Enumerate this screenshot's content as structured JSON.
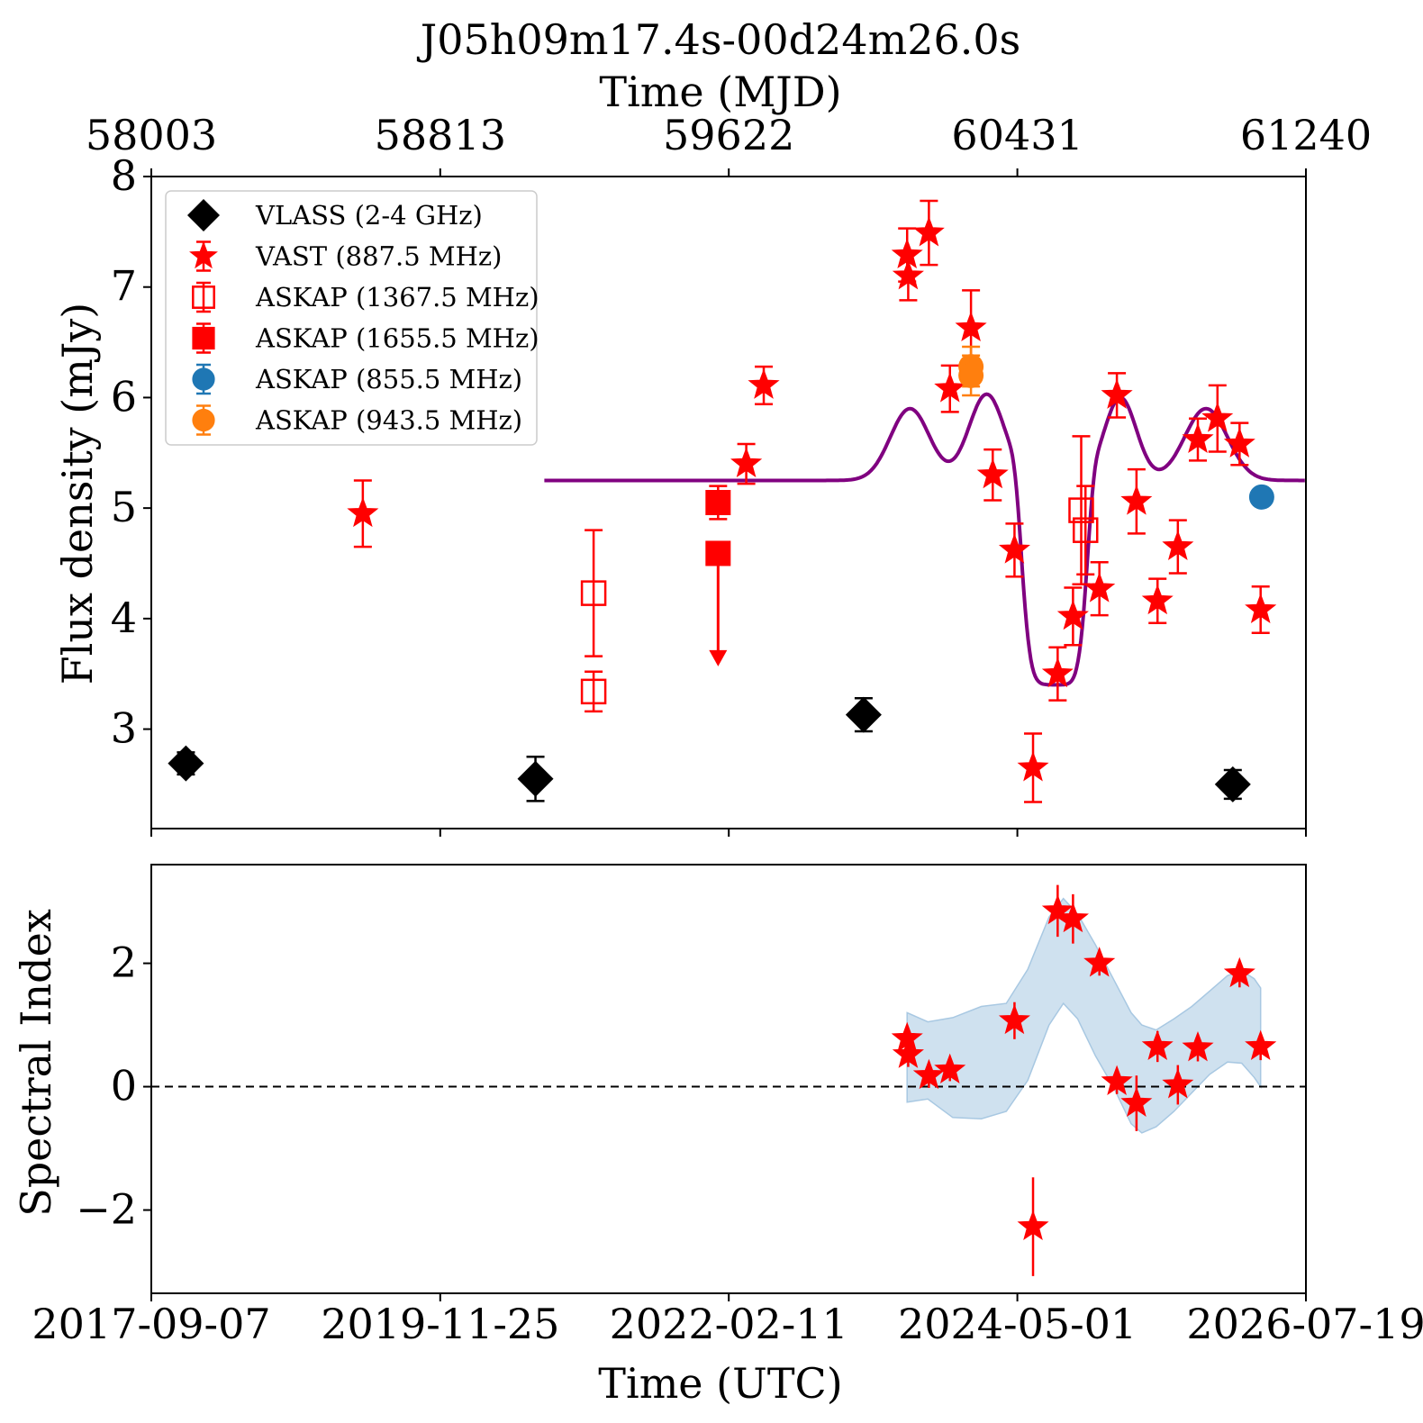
{
  "title": "J05h09m17.4s-00d24m26.0s",
  "top_axis": {
    "label": "Time (MJD)",
    "ticks": [
      {
        "value": 58003,
        "label": "58003"
      },
      {
        "value": 58813,
        "label": "58813"
      },
      {
        "value": 59622,
        "label": "59622"
      },
      {
        "value": 60431,
        "label": "60431"
      },
      {
        "value": 61240,
        "label": "61240"
      }
    ]
  },
  "bottom_axis": {
    "label": "Time (UTC)",
    "ticks": [
      {
        "value": 58003,
        "label": "2017-09-07"
      },
      {
        "value": 58813,
        "label": "2019-11-25"
      },
      {
        "value": 59622,
        "label": "2022-02-11"
      },
      {
        "value": 60431,
        "label": "2024-05-01"
      },
      {
        "value": 61240,
        "label": "2026-07-19"
      }
    ]
  },
  "colors": {
    "vlass": "#000000",
    "vast": "#ff0000",
    "askap": "#ff0000",
    "askap_855": "#1f77b4",
    "askap_943": "#ff7f0e",
    "model": "#800080",
    "band": "#a8c8e2"
  },
  "chart_data": [
    {
      "type": "scatter",
      "name": "flux-panel",
      "ylabel": "Flux density (mJy)",
      "xlim": [
        58003,
        61240
      ],
      "ylim": [
        2.1,
        8.0
      ],
      "yticks": [
        {
          "value": 3,
          "label": "3"
        },
        {
          "value": 4,
          "label": "4"
        },
        {
          "value": 5,
          "label": "5"
        },
        {
          "value": 6,
          "label": "6"
        },
        {
          "value": 7,
          "label": "7"
        },
        {
          "value": 8,
          "label": "8"
        }
      ],
      "legend_position": "top-left",
      "series": [
        {
          "name": "VLASS (2-4 GHz)",
          "marker": "diamond",
          "color": "#000000",
          "points": [
            {
              "x": 58100,
              "y": 2.69,
              "err": 0.1
            },
            {
              "x": 59080,
              "y": 2.55,
              "err": 0.2
            },
            {
              "x": 60000,
              "y": 3.13,
              "err": 0.15
            },
            {
              "x": 61035,
              "y": 2.5,
              "err": 0.13
            }
          ]
        },
        {
          "name": "VAST (887.5 MHz)",
          "marker": "star",
          "color": "#ff0000",
          "points": [
            {
              "x": 58596,
              "y": 4.95,
              "err": 0.3
            },
            {
              "x": 59671,
              "y": 5.4,
              "err": 0.18
            },
            {
              "x": 59720,
              "y": 6.11,
              "err": 0.17
            },
            {
              "x": 60122,
              "y": 7.29,
              "err": 0.24
            },
            {
              "x": 60125,
              "y": 7.1,
              "err": 0.22
            },
            {
              "x": 60183,
              "y": 7.49,
              "err": 0.29
            },
            {
              "x": 60242,
              "y": 6.08,
              "err": 0.21
            },
            {
              "x": 60301,
              "y": 6.63,
              "err": 0.34
            },
            {
              "x": 60362,
              "y": 5.3,
              "err": 0.23
            },
            {
              "x": 60423,
              "y": 4.62,
              "err": 0.24
            },
            {
              "x": 60475,
              "y": 2.65,
              "err": 0.31
            },
            {
              "x": 60544,
              "y": 3.5,
              "err": 0.24
            },
            {
              "x": 60587,
              "y": 4.02,
              "err": 0.26
            },
            {
              "x": 60661,
              "y": 4.27,
              "err": 0.24
            },
            {
              "x": 60710,
              "y": 6.02,
              "err": 0.2
            },
            {
              "x": 60765,
              "y": 5.06,
              "err": 0.29
            },
            {
              "x": 60824,
              "y": 4.16,
              "err": 0.2
            },
            {
              "x": 60881,
              "y": 4.65,
              "err": 0.24
            },
            {
              "x": 60937,
              "y": 5.62,
              "err": 0.19
            },
            {
              "x": 60992,
              "y": 5.81,
              "err": 0.3
            },
            {
              "x": 61054,
              "y": 5.58,
              "err": 0.19
            },
            {
              "x": 61113,
              "y": 4.08,
              "err": 0.21
            }
          ]
        },
        {
          "name": "ASKAP (1367.5 MHz)",
          "marker": "open-square",
          "color": "#ff0000",
          "points": [
            {
              "x": 59243,
              "y": 4.23,
              "err": 0.57
            },
            {
              "x": 59243,
              "y": 3.34,
              "err": 0.18
            },
            {
              "x": 60610,
              "y": 4.98,
              "err": 0.67
            },
            {
              "x": 60622,
              "y": 4.8,
              "err": 0.4
            }
          ]
        },
        {
          "name": "ASKAP (1655.5 MHz)",
          "marker": "square",
          "color": "#ff0000",
          "points": [
            {
              "x": 59592,
              "y": 5.05,
              "err": 0.15
            },
            {
              "x": 59592,
              "y": 4.59,
              "err": 0.0,
              "upper_limit_to": 3.6
            }
          ]
        },
        {
          "name": "ASKAP (855.5 MHz)",
          "marker": "circle",
          "color": "#1f77b4",
          "points": [
            {
              "x": 61116,
              "y": 5.1,
              "err": 0.0
            }
          ]
        },
        {
          "name": "ASKAP (943.5 MHz)",
          "marker": "circle",
          "color": "#ff7f0e",
          "points": [
            {
              "x": 60301,
              "y": 6.28,
              "err": 0.18
            },
            {
              "x": 60301,
              "y": 6.2,
              "err": 0.18
            }
          ]
        }
      ],
      "model_curve": {
        "baseline": 5.25,
        "x_start": 59105,
        "x_end": 61240,
        "bumps": [
          {
            "center": 60130,
            "amplitude": 0.65,
            "width": 55
          },
          {
            "center": 60345,
            "amplitude": 0.78,
            "width": 50
          },
          {
            "center": 60535,
            "amplitude": -1.85,
            "width": 85,
            "flat": 3
          },
          {
            "center": 60720,
            "amplitude": 0.75,
            "width": 45
          },
          {
            "center": 60960,
            "amplitude": 0.65,
            "width": 60
          }
        ]
      }
    },
    {
      "type": "scatter",
      "name": "spectral-index-panel",
      "ylabel": "Spectral Index",
      "xlim": [
        58003,
        61240
      ],
      "ylim": [
        -3.35,
        3.6
      ],
      "yticks": [
        {
          "value": -2,
          "label": "−2"
        },
        {
          "value": 0,
          "label": "0"
        },
        {
          "value": 2,
          "label": "2"
        }
      ],
      "reference_line": 0,
      "series": [
        {
          "name": "",
          "marker": "star",
          "color": "#ff0000",
          "points": [
            {
              "x": 60122,
              "y": 0.78,
              "err": 0.2
            },
            {
              "x": 60125,
              "y": 0.52,
              "err": 0.2
            },
            {
              "x": 60183,
              "y": 0.18,
              "err": 0.2
            },
            {
              "x": 60242,
              "y": 0.27,
              "err": 0.18
            },
            {
              "x": 60423,
              "y": 1.07,
              "err": 0.3
            },
            {
              "x": 60475,
              "y": -2.27,
              "err": 0.8
            },
            {
              "x": 60544,
              "y": 2.85,
              "err": 0.42
            },
            {
              "x": 60587,
              "y": 2.72,
              "err": 0.4
            },
            {
              "x": 60661,
              "y": 2.0,
              "err": 0.2
            },
            {
              "x": 60710,
              "y": 0.08,
              "err": 0.2
            },
            {
              "x": 60765,
              "y": -0.27,
              "err": 0.45
            },
            {
              "x": 60824,
              "y": 0.65,
              "err": 0.25
            },
            {
              "x": 60881,
              "y": 0.03,
              "err": 0.32
            },
            {
              "x": 60937,
              "y": 0.63,
              "err": 0.22
            },
            {
              "x": 61054,
              "y": 1.83,
              "err": 0.22
            },
            {
              "x": 61113,
              "y": 0.65,
              "err": 0.22
            }
          ]
        }
      ],
      "band": {
        "x": [
          60122,
          60180,
          60250,
          60330,
          60400,
          60460,
          60520,
          60560,
          60600,
          60650,
          60700,
          60750,
          60780,
          60820,
          60870,
          60920,
          60970,
          61020,
          61060,
          61095,
          61113
        ],
        "upper": [
          1.2,
          1.05,
          1.12,
          1.3,
          1.35,
          1.9,
          2.75,
          3.05,
          2.8,
          2.3,
          1.75,
          1.2,
          1.0,
          0.92,
          1.1,
          1.3,
          1.55,
          1.8,
          1.88,
          1.75,
          1.6
        ],
        "lower": [
          -0.25,
          -0.2,
          -0.5,
          -0.52,
          -0.4,
          0.1,
          1.0,
          1.35,
          1.1,
          0.5,
          0.0,
          -0.6,
          -0.75,
          -0.65,
          -0.4,
          -0.1,
          0.2,
          0.4,
          0.38,
          0.15,
          0.0
        ]
      }
    }
  ],
  "legend": {
    "entries": [
      {
        "marker": "diamond",
        "color": "#000000",
        "label": "VLASS (2-4 GHz)"
      },
      {
        "marker": "star",
        "color": "#ff0000",
        "label": "VAST (887.5 MHz)"
      },
      {
        "marker": "open-square",
        "color": "#ff0000",
        "label": "ASKAP (1367.5 MHz)"
      },
      {
        "marker": "square",
        "color": "#ff0000",
        "label": "ASKAP (1655.5 MHz)"
      },
      {
        "marker": "circle",
        "color": "#1f77b4",
        "label": "ASKAP (855.5 MHz)"
      },
      {
        "marker": "circle",
        "color": "#ff7f0e",
        "label": "ASKAP (943.5 MHz)"
      }
    ]
  }
}
